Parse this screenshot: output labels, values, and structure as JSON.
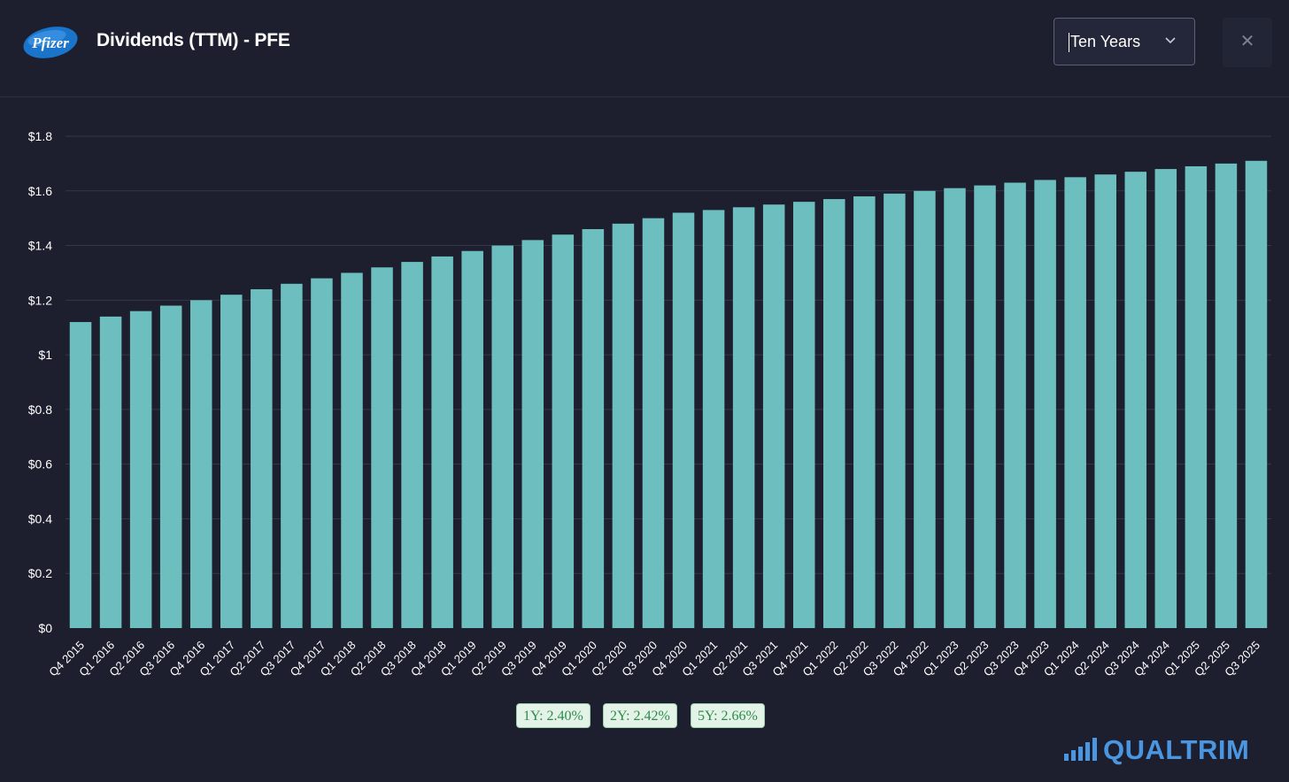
{
  "header": {
    "logo_text": "Pfizer",
    "title": "Dividends (TTM) - PFE",
    "period_select": {
      "value": "Ten Years"
    },
    "close_label": "✕"
  },
  "colors": {
    "background": "#1d1f2e",
    "bar": "#6dbfbf",
    "grid": "#34374a",
    "brand": "#4a96e0",
    "badge_text": "#2f8a4a"
  },
  "chart_data": {
    "type": "bar",
    "title": "",
    "xlabel": "",
    "ylabel": "",
    "ylim": [
      0,
      1.8
    ],
    "y_ticks": [
      "$0",
      "$0.2",
      "$0.4",
      "$0.6",
      "$0.8",
      "$1",
      "$1.2",
      "$1.4",
      "$1.6",
      "$1.8"
    ],
    "categories": [
      "Q4 2015",
      "Q1 2016",
      "Q2 2016",
      "Q3 2016",
      "Q4 2016",
      "Q1 2017",
      "Q2 2017",
      "Q3 2017",
      "Q4 2017",
      "Q1 2018",
      "Q2 2018",
      "Q3 2018",
      "Q4 2018",
      "Q1 2019",
      "Q2 2019",
      "Q3 2019",
      "Q4 2019",
      "Q1 2020",
      "Q2 2020",
      "Q3 2020",
      "Q4 2020",
      "Q1 2021",
      "Q2 2021",
      "Q3 2021",
      "Q4 2021",
      "Q1 2022",
      "Q2 2022",
      "Q3 2022",
      "Q4 2022",
      "Q1 2023",
      "Q2 2023",
      "Q3 2023",
      "Q4 2023",
      "Q1 2024",
      "Q2 2024",
      "Q3 2024",
      "Q4 2024",
      "Q1 2025",
      "Q2 2025",
      "Q3 2025"
    ],
    "values": [
      1.12,
      1.14,
      1.16,
      1.18,
      1.2,
      1.22,
      1.24,
      1.26,
      1.28,
      1.3,
      1.32,
      1.34,
      1.36,
      1.38,
      1.4,
      1.42,
      1.44,
      1.46,
      1.48,
      1.5,
      1.52,
      1.53,
      1.54,
      1.55,
      1.56,
      1.57,
      1.58,
      1.59,
      1.6,
      1.61,
      1.62,
      1.63,
      1.64,
      1.65,
      1.66,
      1.67,
      1.68,
      1.69,
      1.7,
      1.71
    ],
    "grid": true,
    "legend": "none"
  },
  "growth_badges": [
    {
      "label": "1Y: 2.40%"
    },
    {
      "label": "2Y: 2.42%"
    },
    {
      "label": "5Y: 2.66%"
    }
  ],
  "brand": {
    "name": "QUALTRIM"
  }
}
